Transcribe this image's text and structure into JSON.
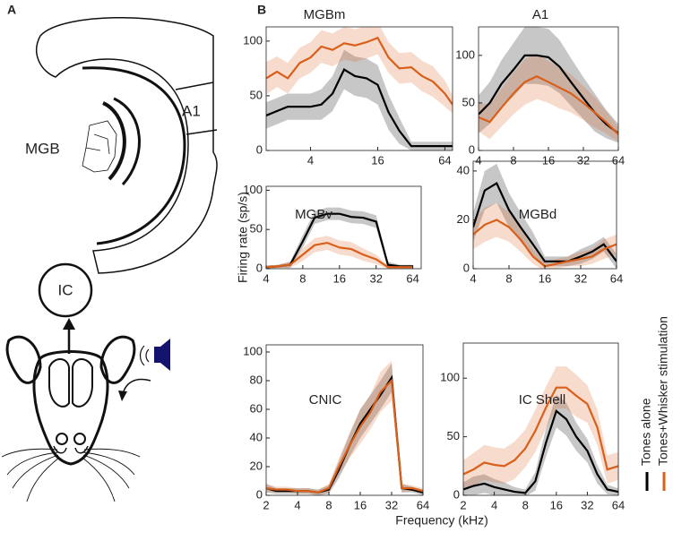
{
  "panel_labels": [
    "A",
    "B"
  ],
  "diagram": {
    "thalamus_label": "MGB",
    "cortex_label": "A1",
    "midbrain_label": "IC"
  },
  "shared_axes": {
    "ylabel": "Firing rate (sp/s)",
    "xlabel": "Frequency (kHz)"
  },
  "series": [
    {
      "name": "Tones alone",
      "color": "#000000"
    },
    {
      "name": "Tones+Whisker stimulation",
      "color": "#d95f1a"
    }
  ],
  "chart_data": [
    {
      "type": "line",
      "title": "MGBm",
      "xlog": true,
      "xlim": [
        1.6,
        75
      ],
      "xticks": [
        4,
        16,
        64
      ],
      "ylim": [
        0,
        113
      ],
      "yticks": [
        0,
        50,
        100
      ],
      "x": [
        1.6,
        2,
        2.5,
        3.2,
        4,
        5,
        6.3,
        8,
        10,
        12.7,
        16,
        20,
        25,
        32,
        40,
        50,
        64,
        75
      ],
      "series": [
        {
          "values": [
            32,
            36,
            40,
            40,
            40,
            42,
            52,
            74,
            68,
            66,
            60,
            35,
            18,
            4,
            4,
            4,
            4,
            4
          ],
          "error": [
            12,
            12,
            12,
            12,
            12,
            14,
            16,
            18,
            18,
            18,
            18,
            16,
            12,
            4,
            4,
            4,
            4,
            4
          ]
        },
        {
          "values": [
            66,
            72,
            66,
            80,
            85,
            95,
            92,
            98,
            96,
            99,
            103,
            85,
            75,
            76,
            68,
            63,
            52,
            42
          ],
          "error": [
            15,
            14,
            14,
            14,
            14,
            15,
            15,
            15,
            15,
            15,
            15,
            14,
            14,
            14,
            14,
            14,
            12,
            8
          ]
        }
      ]
    },
    {
      "type": "line",
      "title": "A1",
      "xlog": true,
      "xlim": [
        4,
        64
      ],
      "xticks": [
        4,
        8,
        16,
        32,
        64
      ],
      "ylim": [
        0,
        130
      ],
      "yticks": [
        0,
        50,
        100
      ],
      "x": [
        4,
        5,
        6.3,
        8,
        10,
        12.7,
        16,
        20,
        25,
        32,
        40,
        50,
        64
      ],
      "series": [
        {
          "values": [
            38,
            50,
            70,
            85,
            100,
            100,
            98,
            88,
            72,
            55,
            40,
            28,
            18
          ],
          "error": [
            20,
            22,
            25,
            28,
            30,
            30,
            30,
            28,
            25,
            22,
            20,
            15,
            10
          ]
        },
        {
          "values": [
            35,
            30,
            45,
            60,
            72,
            78,
            72,
            66,
            60,
            50,
            40,
            30,
            17
          ],
          "error": [
            15,
            18,
            20,
            22,
            24,
            24,
            22,
            22,
            20,
            18,
            16,
            12,
            8
          ]
        }
      ]
    },
    {
      "type": "line",
      "title": "MGBv",
      "xlog": true,
      "xlim": [
        4,
        75
      ],
      "xticks": [
        4,
        8,
        16,
        32,
        64
      ],
      "ylim": [
        0,
        105
      ],
      "yticks": [
        0,
        50,
        100
      ],
      "x": [
        4,
        5,
        6.3,
        8,
        10,
        12.7,
        16,
        20,
        25,
        32,
        40,
        50,
        64
      ],
      "series": [
        {
          "values": [
            2,
            3,
            5,
            35,
            65,
            70,
            70,
            66,
            65,
            60,
            5,
            3,
            3
          ],
          "error": [
            2,
            2,
            4,
            8,
            8,
            8,
            8,
            8,
            8,
            8,
            4,
            2,
            2
          ]
        },
        {
          "values": [
            2,
            3,
            5,
            18,
            30,
            33,
            27,
            25,
            18,
            12,
            2,
            2,
            2
          ],
          "error": [
            2,
            2,
            4,
            8,
            9,
            9,
            9,
            9,
            8,
            6,
            2,
            2,
            2
          ]
        }
      ]
    },
    {
      "type": "line",
      "title": "MGBd",
      "xlog": true,
      "xlim": [
        4,
        64
      ],
      "xticks": [
        4,
        8,
        16,
        32,
        64
      ],
      "ylim": [
        0,
        44
      ],
      "yticks": [
        0,
        20,
        40
      ],
      "x": [
        4,
        5,
        6.3,
        8,
        10,
        12.7,
        16,
        20,
        25,
        32,
        40,
        50,
        64
      ],
      "series": [
        {
          "values": [
            17,
            32,
            35,
            24,
            17,
            10,
            3,
            3,
            3,
            5,
            7,
            10,
            3
          ],
          "error": [
            6,
            8,
            8,
            7,
            6,
            5,
            2,
            2,
            2,
            3,
            3,
            3,
            3
          ]
        },
        {
          "values": [
            14,
            18,
            20,
            17,
            12,
            5,
            1,
            2,
            3,
            4,
            5,
            8,
            10
          ],
          "error": [
            6,
            7,
            7,
            6,
            5,
            3,
            2,
            2,
            2,
            3,
            3,
            4,
            4
          ]
        }
      ]
    },
    {
      "type": "line",
      "title": "CNIC",
      "xlog": true,
      "xlim": [
        2,
        64
      ],
      "xticks": [
        2,
        4,
        8,
        16,
        32,
        64
      ],
      "ylim": [
        0,
        105
      ],
      "yticks": [
        0,
        20,
        40,
        60,
        80,
        100
      ],
      "x": [
        2,
        2.5,
        3.2,
        4,
        5,
        6.3,
        8,
        10,
        12.7,
        16,
        20,
        25,
        32,
        40,
        50,
        64
      ],
      "series": [
        {
          "values": [
            5,
            3,
            3,
            3,
            3,
            2,
            4,
            18,
            35,
            50,
            60,
            70,
            82,
            5,
            4,
            2
          ],
          "error": [
            3,
            2,
            2,
            2,
            2,
            2,
            3,
            6,
            8,
            10,
            10,
            10,
            10,
            3,
            2,
            2
          ]
        },
        {
          "values": [
            5,
            4,
            4,
            3,
            3,
            2,
            5,
            20,
            35,
            48,
            58,
            72,
            80,
            5,
            5,
            3
          ],
          "error": [
            3,
            2,
            2,
            2,
            2,
            2,
            3,
            6,
            9,
            12,
            12,
            14,
            14,
            3,
            2,
            2
          ]
        }
      ]
    },
    {
      "type": "line",
      "title": "IC Shell",
      "xlog": true,
      "xlim": [
        2,
        64
      ],
      "xticks": [
        2,
        4,
        8,
        16,
        32,
        64
      ],
      "ylim": [
        0,
        130
      ],
      "yticks": [
        0,
        50,
        100
      ],
      "x": [
        2,
        2.5,
        3.2,
        4,
        5,
        6.3,
        8,
        10,
        12.7,
        16,
        20,
        25,
        32,
        40,
        50,
        64
      ],
      "series": [
        {
          "values": [
            5,
            8,
            10,
            7,
            5,
            3,
            2,
            12,
            45,
            72,
            65,
            50,
            38,
            18,
            5,
            3
          ],
          "error": [
            6,
            8,
            8,
            7,
            6,
            4,
            3,
            8,
            12,
            14,
            14,
            12,
            10,
            8,
            4,
            3
          ]
        },
        {
          "values": [
            18,
            22,
            28,
            26,
            25,
            30,
            40,
            55,
            75,
            92,
            92,
            85,
            78,
            58,
            22,
            25
          ],
          "error": [
            12,
            14,
            15,
            15,
            15,
            16,
            16,
            18,
            18,
            18,
            18,
            18,
            16,
            15,
            12,
            12
          ]
        }
      ]
    }
  ]
}
